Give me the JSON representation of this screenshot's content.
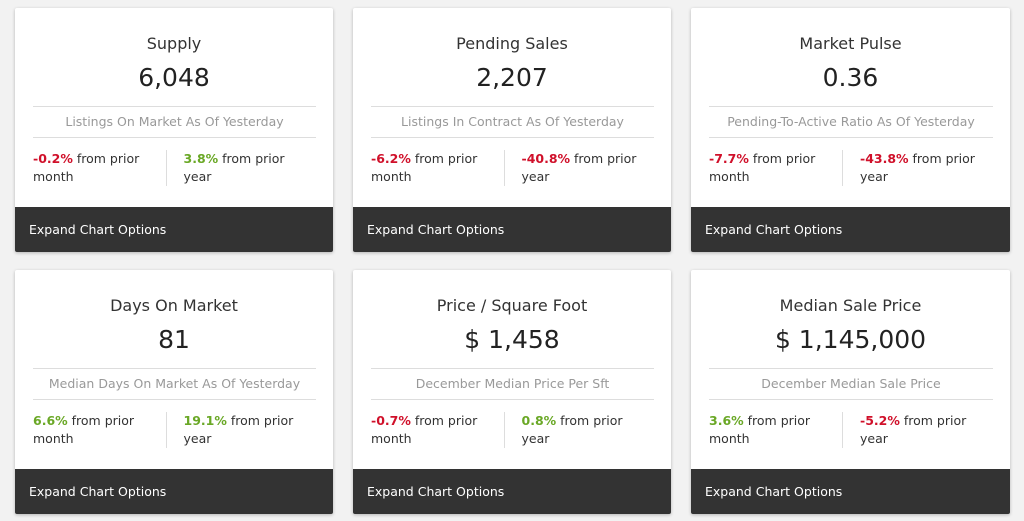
{
  "cards": [
    {
      "title": "Supply",
      "value": "6,048",
      "subtitle": "Listings On Market As Of Yesterday",
      "month_change": "-0.2%",
      "month_dir": "neg",
      "month_text": " from prior month",
      "year_change": "3.8%",
      "year_dir": "pos",
      "year_text": " from prior year",
      "button": "Expand Chart Options"
    },
    {
      "title": "Pending Sales",
      "value": "2,207",
      "subtitle": "Listings In Contract As Of Yesterday",
      "month_change": "-6.2%",
      "month_dir": "neg",
      "month_text": " from prior month",
      "year_change": "-40.8%",
      "year_dir": "neg",
      "year_text": " from prior year",
      "button": "Expand Chart Options"
    },
    {
      "title": "Market Pulse",
      "value": "0.36",
      "subtitle": "Pending-To-Active Ratio As Of Yesterday",
      "month_change": "-7.7%",
      "month_dir": "neg",
      "month_text": " from prior month",
      "year_change": "-43.8%",
      "year_dir": "neg",
      "year_text": " from prior year",
      "button": "Expand Chart Options"
    },
    {
      "title": "Days On Market",
      "value": "81",
      "subtitle": "Median Days On Market As Of Yesterday",
      "month_change": "6.6%",
      "month_dir": "pos",
      "month_text": " from prior month",
      "year_change": "19.1%",
      "year_dir": "pos",
      "year_text": " from prior year",
      "button": "Expand Chart Options"
    },
    {
      "title": "Price / Square Foot",
      "value": "$ 1,458",
      "subtitle": "December Median Price Per Sft",
      "month_change": "-0.7%",
      "month_dir": "neg",
      "month_text": " from prior month",
      "year_change": "0.8%",
      "year_dir": "pos",
      "year_text": " from prior year",
      "button": "Expand Chart Options"
    },
    {
      "title": "Median Sale Price",
      "value": "$ 1,145,000",
      "subtitle": "December Median Sale Price",
      "month_change": "3.6%",
      "month_dir": "pos",
      "month_text": " from prior month",
      "year_change": "-5.2%",
      "year_dir": "neg",
      "year_text": " from prior year",
      "button": "Expand Chart Options"
    }
  ],
  "colors": {
    "negative": "#d0102a",
    "positive": "#6aa826",
    "footer": "#333333"
  }
}
